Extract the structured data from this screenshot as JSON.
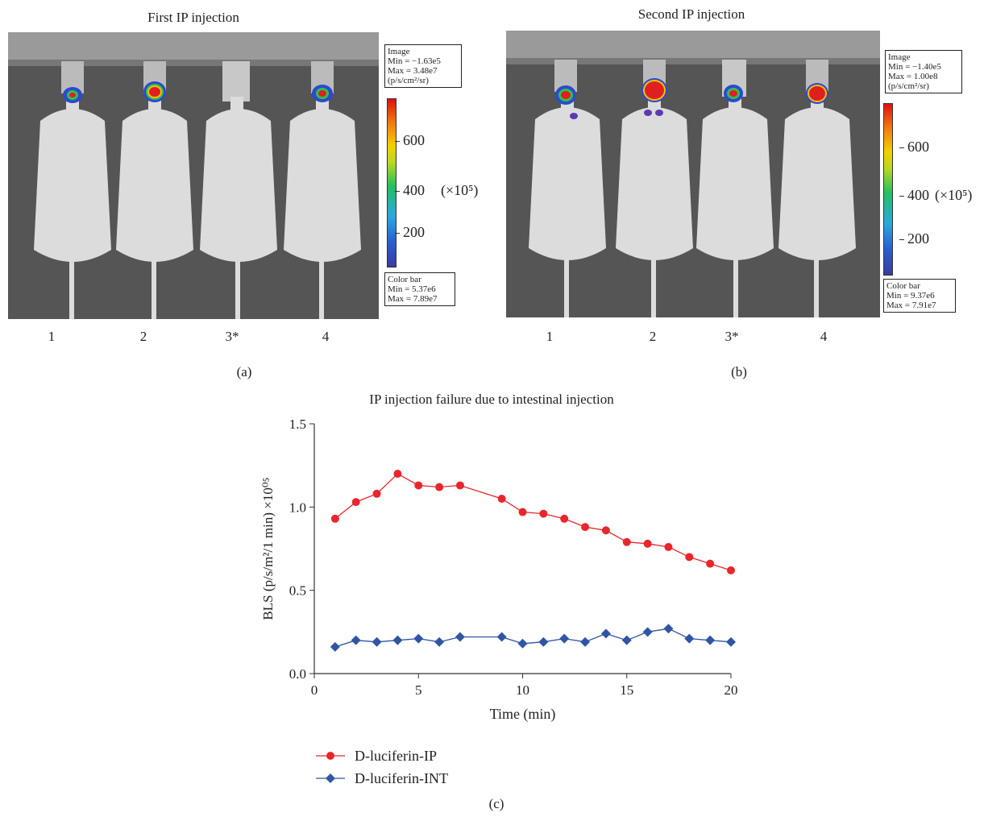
{
  "panel_a": {
    "title": "First IP injection",
    "label": "(a)",
    "image_box": {
      "line1": "Image",
      "line2": "Min = −1.63e5",
      "line3": "Max = 3.48e7",
      "line4": "(p/s/cm²/sr)"
    },
    "colorbar_box": {
      "line1": "Color bar",
      "line2": "Min = 5.37e6",
      "line3": "Max = 7.89e7"
    },
    "colorbar_ticks": [
      "600",
      "400",
      "200"
    ],
    "colorbar_unit": "(×10⁵)",
    "mice": [
      "1",
      "2",
      "3*",
      "4"
    ]
  },
  "panel_b": {
    "title": "Second IP injection",
    "label": "(b)",
    "image_box": {
      "line1": "Image",
      "line2": "Min = −1.40e5",
      "line3": "Max = 1.00e8",
      "line4": "(p/s/cm²/sr)"
    },
    "colorbar_box": {
      "line1": "Color bar",
      "line2": "Min = 9.37e6",
      "line3": "Max = 7.91e7"
    },
    "colorbar_ticks": [
      "600",
      "400",
      "200"
    ],
    "colorbar_unit": "(×10⁵)",
    "mice": [
      "1",
      "2",
      "3*",
      "4"
    ]
  },
  "panel_c": {
    "label": "(c)"
  },
  "chart_data": {
    "type": "line",
    "title": "IP injection failure due to intestinal injection",
    "xlabel": "Time (min)",
    "ylabel": "BLS (p/s/m²/1 min) ×10⁰⁵",
    "xlim": [
      0,
      20
    ],
    "ylim": [
      0,
      1.5
    ],
    "xticks": [
      0,
      5,
      10,
      15,
      20
    ],
    "yticks": [
      0.0,
      0.5,
      1.0,
      1.5
    ],
    "ytick_labels": [
      "0.0",
      "0.5",
      "1.0",
      "1.5"
    ],
    "grid": false,
    "legend_position": "bottom-left",
    "series": [
      {
        "name": "D-luciferin-IP",
        "color": "#e8262b",
        "marker": "circle",
        "x": [
          1,
          2,
          3,
          4,
          5,
          6,
          7,
          9,
          10,
          11,
          12,
          13,
          14,
          15,
          16,
          17,
          18,
          19,
          20
        ],
        "y": [
          0.93,
          1.03,
          1.08,
          1.2,
          1.13,
          1.12,
          1.13,
          1.05,
          0.97,
          0.96,
          0.93,
          0.88,
          0.86,
          0.79,
          0.78,
          0.76,
          0.7,
          0.66,
          0.62
        ]
      },
      {
        "name": "D-luciferin-INT",
        "color": "#2f55a4",
        "marker": "diamond",
        "x": [
          1,
          2,
          3,
          4,
          5,
          6,
          7,
          9,
          10,
          11,
          12,
          13,
          14,
          15,
          16,
          17,
          18,
          19,
          20
        ],
        "y": [
          0.16,
          0.2,
          0.19,
          0.2,
          0.21,
          0.19,
          0.22,
          0.22,
          0.18,
          0.19,
          0.21,
          0.19,
          0.24,
          0.2,
          0.25,
          0.27,
          0.21,
          0.2,
          0.19
        ]
      }
    ]
  }
}
